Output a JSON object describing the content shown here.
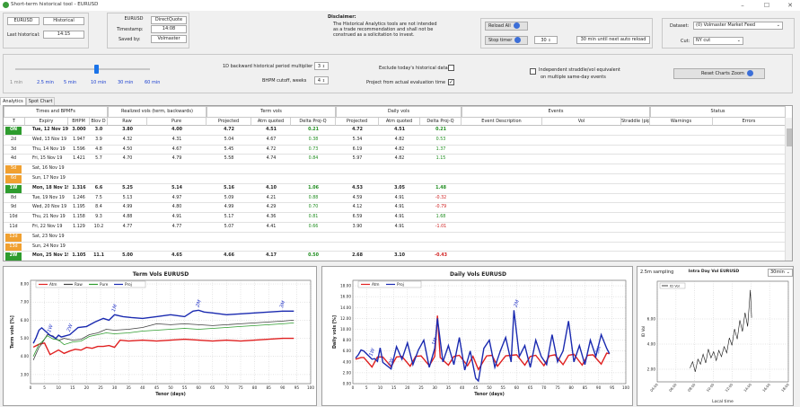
{
  "window": {
    "title": "Short-term historical tool - EURUSD"
  },
  "top": {
    "ccy_pair": "EURUSD",
    "mode": "Historical",
    "last_historical_label": "Last historical:",
    "last_historical_value": "14:15",
    "quote_ccy": "EURUSD",
    "quote_type": "DirectQuote",
    "timestamp_label": "Timestamp:",
    "timestamp_value": "14:08",
    "saved_by_label": "Saved by:",
    "saved_by_value": "Volmaster",
    "disclaimer_title": "Disclaimer:",
    "disclaimer_text_1": "The Historical Analytics tools are not intended",
    "disclaimer_text_2": "as a trade recommendation and shall not be",
    "disclaimer_text_3": "construed as a solicitation to invest.",
    "reload_all": "Reload All",
    "stop_timer": "Stop timer",
    "timer_value": "30",
    "timer_status": "30 min until next auto reload",
    "dataset_label": "Dataset:",
    "dataset_value": "(0) Volmaster Market Feed",
    "cut_label": "Cut:",
    "cut_value": "NY cut"
  },
  "controls": {
    "slider_ticks": [
      "1 min",
      "2.5 min",
      "5 min",
      "10 min",
      "30 min",
      "60 min"
    ],
    "slider_level_index": 3,
    "multiplier_label": "1D backward historical period multiplier",
    "multiplier_value": "3",
    "bhpm_cutoff_label": "BHPM cutoff, weeks",
    "bhpm_cutoff_value": "4",
    "exclude_today_label": "Exclude today's historical data",
    "exclude_today_checked": false,
    "project_from_label": "Project from actual evaluation time",
    "project_from_checked": true,
    "independent_label_1": "Independent straddle/vol equivalent",
    "independent_label_2": "on multiple same-day events",
    "independent_checked": false,
    "reset_zoom": "Reset Charts Zoom"
  },
  "tabs": [
    "Analytics",
    "Spot Chart"
  ],
  "grid": {
    "groups": [
      "Times and BPMFs",
      "Realized vols (term, backwards)",
      "Term vols",
      "Daily vols",
      "Events",
      "Status"
    ],
    "headers": [
      "T",
      "Expiry",
      "BHPM",
      "Blov D",
      "Raw",
      "Pure",
      "Projected",
      "Atm quoted",
      "Delta Proj-Q",
      "Projected",
      "Atm quoted",
      "Delta Proj-Q",
      "Event Description",
      "Vol",
      "Straddle (pips)",
      "Warnings",
      "Errors"
    ],
    "rows": [
      {
        "t": "ON",
        "tc": "green",
        "bold": true,
        "expiry": "Tue, 12 Nov 19",
        "bhpm": "3.000",
        "blov": "3.0",
        "raw": "3.80",
        "pure": "4.00",
        "tproj": "4.72",
        "tatm": "4.51",
        "tdelta": "0.21",
        "tdc": "green",
        "dproj": "4.72",
        "datm": "4.51",
        "ddelta": "0.21",
        "ddc": "green"
      },
      {
        "t": "2d",
        "tc": "plain",
        "bold": false,
        "expiry": "Wed, 13 Nov 19",
        "bhpm": "1.947",
        "blov": "3.9",
        "raw": "4.32",
        "pure": "4.31",
        "tproj": "5.04",
        "tatm": "4.67",
        "tdelta": "0.38",
        "tdc": "green",
        "dproj": "5.34",
        "datm": "4.82",
        "ddelta": "0.53",
        "ddc": "green"
      },
      {
        "t": "3d",
        "tc": "plain",
        "bold": false,
        "expiry": "Thu, 14 Nov 19",
        "bhpm": "1.596",
        "blov": "4.8",
        "raw": "4.50",
        "pure": "4.67",
        "tproj": "5.45",
        "tatm": "4.72",
        "tdelta": "0.73",
        "tdc": "green",
        "dproj": "6.19",
        "datm": "4.82",
        "ddelta": "1.37",
        "ddc": "green"
      },
      {
        "t": "4d",
        "tc": "plain",
        "bold": false,
        "expiry": "Fri, 15 Nov 19",
        "bhpm": "1.421",
        "blov": "5.7",
        "raw": "4.70",
        "pure": "4.79",
        "tproj": "5.58",
        "tatm": "4.74",
        "tdelta": "0.84",
        "tdc": "green",
        "dproj": "5.97",
        "datm": "4.82",
        "ddelta": "1.15",
        "ddc": "green"
      },
      {
        "t": "5d",
        "tc": "orange",
        "bold": false,
        "expiry": "Sat, 16 Nov 19",
        "bhpm": "",
        "blov": "",
        "raw": "",
        "pure": "",
        "tproj": "",
        "tatm": "",
        "tdelta": "",
        "tdc": "plain",
        "dproj": "",
        "datm": "",
        "ddelta": "",
        "ddc": "plain"
      },
      {
        "t": "6d",
        "tc": "orange",
        "bold": false,
        "expiry": "Sun, 17 Nov 19",
        "bhpm": "",
        "blov": "",
        "raw": "",
        "pure": "",
        "tproj": "",
        "tatm": "",
        "tdelta": "",
        "tdc": "plain",
        "dproj": "",
        "datm": "",
        "ddelta": "",
        "ddc": "plain"
      },
      {
        "t": "1W",
        "tc": "green",
        "bold": true,
        "expiry": "Mon, 18 Nov 19",
        "bhpm": "1.316",
        "blov": "6.6",
        "raw": "5.25",
        "pure": "5.14",
        "tproj": "5.16",
        "tatm": "4.10",
        "tdelta": "1.06",
        "tdc": "green",
        "dproj": "4.53",
        "datm": "3.05",
        "ddelta": "1.48",
        "ddc": "green"
      },
      {
        "t": "8d",
        "tc": "plain",
        "bold": false,
        "expiry": "Tue, 19 Nov 19",
        "bhpm": "1.246",
        "blov": "7.5",
        "raw": "5.13",
        "pure": "4.97",
        "tproj": "5.09",
        "tatm": "4.21",
        "tdelta": "0.88",
        "tdc": "green",
        "dproj": "4.59",
        "datm": "4.91",
        "ddelta": "-0.32",
        "ddc": "red"
      },
      {
        "t": "9d",
        "tc": "plain",
        "bold": false,
        "expiry": "Wed, 20 Nov 19",
        "bhpm": "1.195",
        "blov": "8.4",
        "raw": "4.99",
        "pure": "4.80",
        "tproj": "4.99",
        "tatm": "4.29",
        "tdelta": "0.70",
        "tdc": "green",
        "dproj": "4.12",
        "datm": "4.91",
        "ddelta": "-0.79",
        "ddc": "red"
      },
      {
        "t": "10d",
        "tc": "plain",
        "bold": false,
        "expiry": "Thu, 21 Nov 19",
        "bhpm": "1.158",
        "blov": "9.3",
        "raw": "4.88",
        "pure": "4.91",
        "tproj": "5.17",
        "tatm": "4.36",
        "tdelta": "0.81",
        "tdc": "green",
        "dproj": "6.59",
        "datm": "4.91",
        "ddelta": "1.68",
        "ddc": "green"
      },
      {
        "t": "11d",
        "tc": "plain",
        "bold": false,
        "expiry": "Fri, 22 Nov 19",
        "bhpm": "1.129",
        "blov": "10.2",
        "raw": "4.77",
        "pure": "4.77",
        "tproj": "5.07",
        "tatm": "4.41",
        "tdelta": "0.66",
        "tdc": "green",
        "dproj": "3.90",
        "datm": "4.91",
        "ddelta": "-1.01",
        "ddc": "red"
      },
      {
        "t": "12d",
        "tc": "orange",
        "bold": false,
        "expiry": "Sat, 23 Nov 19",
        "bhpm": "",
        "blov": "",
        "raw": "",
        "pure": "",
        "tproj": "",
        "tatm": "",
        "tdelta": "",
        "tdc": "plain",
        "dproj": "",
        "datm": "",
        "ddelta": "",
        "ddc": "plain"
      },
      {
        "t": "13d",
        "tc": "orange",
        "bold": false,
        "expiry": "Sun, 24 Nov 19",
        "bhpm": "",
        "blov": "",
        "raw": "",
        "pure": "",
        "tproj": "",
        "tatm": "",
        "tdelta": "",
        "tdc": "plain",
        "dproj": "",
        "datm": "",
        "ddelta": "",
        "ddc": "plain"
      },
      {
        "t": "2W",
        "tc": "green",
        "bold": true,
        "expiry": "Mon, 25 Nov 19",
        "bhpm": "1.105",
        "blov": "11.1",
        "raw": "5.00",
        "pure": "4.65",
        "tproj": "4.66",
        "tatm": "4.17",
        "tdelta": "0.50",
        "tdc": "green",
        "dproj": "2.68",
        "datm": "3.10",
        "ddelta": "-0.43",
        "ddc": "red"
      }
    ]
  },
  "colors": {
    "green_tenor": "#2e9c2e",
    "orange_tenor": "#f0a030",
    "atm": "#e02020",
    "raw": "#404040",
    "pure": "#2e9c2e",
    "proj": "#1a2ab0",
    "delta_pos": "#1e8c1e",
    "delta_neg": "#d02020"
  },
  "chart_data": [
    {
      "type": "line",
      "title": "Term Vols  EURUSD",
      "xlabel": "Tenor (days)",
      "ylabel": "Term vols [%]",
      "xlim": [
        0,
        100
      ],
      "ylim": [
        2.5,
        8.2
      ],
      "xticks": [
        "0",
        "5",
        "10",
        "15",
        "20",
        "25",
        "30",
        "35",
        "40",
        "45",
        "50",
        "55",
        "60",
        "65",
        "70",
        "75",
        "80",
        "85",
        "90",
        "95",
        "100"
      ],
      "yticks": [
        "3.00",
        "4.00",
        "5.00",
        "6.00",
        "7.00",
        "8.00"
      ],
      "legend": "top-left",
      "annotations": [
        "1W",
        "2W",
        "1M",
        "2M",
        "3M"
      ],
      "series": [
        {
          "name": "Atm",
          "color": "#e02020",
          "x": [
            1,
            3,
            5,
            7,
            10,
            12,
            14,
            16,
            18,
            20,
            22,
            24,
            26,
            28,
            30,
            32,
            35,
            40,
            45,
            50,
            55,
            60,
            65,
            70,
            75,
            80,
            85,
            90,
            94
          ],
          "y": [
            4.51,
            4.67,
            4.74,
            4.1,
            4.36,
            4.17,
            4.3,
            4.4,
            4.35,
            4.5,
            4.45,
            4.55,
            4.55,
            4.6,
            4.5,
            4.9,
            4.85,
            4.9,
            4.85,
            4.9,
            4.95,
            4.9,
            4.85,
            4.9,
            4.85,
            4.9,
            4.95,
            5.0,
            5.0
          ]
        },
        {
          "name": "Raw",
          "color": "#404040",
          "x": [
            1,
            3,
            4,
            6,
            8,
            10,
            12,
            15,
            18,
            21,
            24,
            27,
            30,
            35,
            40,
            45,
            50,
            55,
            60,
            65,
            70,
            75,
            80,
            85,
            90,
            94
          ],
          "y": [
            3.8,
            4.5,
            4.7,
            5.2,
            5.13,
            4.88,
            5.0,
            4.9,
            4.95,
            5.2,
            5.3,
            5.5,
            5.45,
            5.5,
            5.6,
            5.8,
            5.75,
            5.8,
            5.75,
            5.7,
            5.75,
            5.8,
            5.85,
            5.9,
            5.95,
            6.0
          ]
        },
        {
          "name": "Pure",
          "color": "#2e9c2e",
          "x": [
            1,
            3,
            4,
            6,
            8,
            10,
            12,
            15,
            18,
            21,
            24,
            27,
            30,
            35,
            40,
            45,
            50,
            55,
            60,
            65,
            70,
            75,
            80,
            85,
            90,
            94
          ],
          "y": [
            4.0,
            4.67,
            4.79,
            5.14,
            4.97,
            4.91,
            4.65,
            4.8,
            4.85,
            5.1,
            5.2,
            5.3,
            5.25,
            5.3,
            5.4,
            5.45,
            5.5,
            5.55,
            5.5,
            5.55,
            5.6,
            5.65,
            5.7,
            5.75,
            5.8,
            5.85
          ]
        },
        {
          "name": "Proj",
          "color": "#1a2ab0",
          "x": [
            1,
            2,
            3,
            4,
            7,
            8,
            9,
            10,
            11,
            14,
            17,
            20,
            23,
            26,
            28,
            30,
            33,
            36,
            40,
            45,
            50,
            55,
            58,
            60,
            62,
            65,
            70,
            75,
            80,
            85,
            90,
            94
          ],
          "y": [
            4.72,
            5.04,
            5.45,
            5.58,
            5.16,
            5.09,
            4.99,
            5.17,
            5.07,
            5.2,
            5.6,
            5.65,
            5.9,
            6.1,
            6.0,
            6.3,
            6.2,
            6.15,
            6.1,
            6.2,
            6.3,
            6.2,
            6.5,
            6.55,
            6.45,
            6.4,
            6.3,
            6.35,
            6.4,
            6.45,
            6.5,
            6.5
          ]
        }
      ]
    },
    {
      "type": "line",
      "title": "Daily Vols  EURUSD",
      "xlabel": "Tenor (days)",
      "ylabel": "Daily vols [%]",
      "xlim": [
        0,
        100
      ],
      "ylim": [
        0,
        19
      ],
      "xticks": [
        "0",
        "5",
        "10",
        "15",
        "20",
        "25",
        "30",
        "35",
        "40",
        "45",
        "50",
        "55",
        "60",
        "65",
        "70",
        "75",
        "80",
        "85",
        "90",
        "95",
        "100"
      ],
      "yticks": [
        "0.00",
        "2.00",
        "4.00",
        "6.00",
        "8.00",
        "10.00",
        "12.00",
        "14.00",
        "16.00",
        "18.00"
      ],
      "legend": "top-left",
      "annotations": [
        "1W",
        "2W",
        "1M",
        "2M",
        "3M"
      ],
      "series": [
        {
          "name": "Atm",
          "color": "#e02020",
          "x": [
            1,
            3,
            4,
            7,
            9,
            11,
            14,
            16,
            18,
            21,
            23,
            25,
            28,
            30,
            31,
            32,
            35,
            37,
            39,
            42,
            44,
            46,
            49,
            51,
            53,
            56,
            58,
            60,
            63,
            65,
            67,
            70,
            72,
            74,
            77,
            79,
            81,
            84,
            86,
            88,
            91,
            93,
            94
          ],
          "y": [
            4.5,
            4.8,
            4.8,
            3.05,
            4.9,
            4.9,
            3.1,
            4.9,
            5.0,
            3.2,
            5.0,
            5.1,
            3.3,
            5.0,
            12.5,
            4.8,
            3.4,
            5.0,
            5.2,
            3.3,
            5.0,
            2.6,
            5.1,
            5.2,
            3.2,
            5.1,
            5.2,
            5.3,
            3.4,
            5.0,
            5.2,
            3.3,
            5.1,
            5.3,
            3.5,
            5.2,
            5.4,
            3.4,
            5.2,
            5.3,
            3.6,
            5.6,
            5.5
          ]
        },
        {
          "name": "Proj",
          "color": "#1a2ab0",
          "x": [
            1,
            2,
            3,
            4,
            7,
            8,
            9,
            10,
            11,
            14,
            16,
            18,
            20,
            22,
            24,
            26,
            28,
            30,
            31,
            33,
            35,
            37,
            39,
            41,
            43,
            45,
            46,
            48,
            50,
            52,
            54,
            56,
            58,
            59,
            61,
            63,
            65,
            67,
            69,
            71,
            73,
            75,
            77,
            79,
            81,
            83,
            85,
            87,
            89,
            91,
            93,
            94
          ],
          "y": [
            4.7,
            5.3,
            6.2,
            6.0,
            4.5,
            4.6,
            4.1,
            6.6,
            3.9,
            2.7,
            6.8,
            4.5,
            7.5,
            3.5,
            6.2,
            8.0,
            3.0,
            6.5,
            12.0,
            4.0,
            7.0,
            3.5,
            8.5,
            2.5,
            6.0,
            1.0,
            0.5,
            6.5,
            8.0,
            3.0,
            6.0,
            8.5,
            4.0,
            13.5,
            5.0,
            7.0,
            3.0,
            8.0,
            5.0,
            3.5,
            9.0,
            4.0,
            6.0,
            11.5,
            4.0,
            7.0,
            3.5,
            8.0,
            5.0,
            9.0,
            6.5,
            5.5
          ]
        }
      ]
    },
    {
      "type": "line",
      "title": "Intra Day Vol  EURUSD",
      "xlabel": "Local time",
      "ylabel": "ID Vol",
      "ylim": [
        1,
        9
      ],
      "yticks": [
        "2.00",
        "4.00",
        "6.00"
      ],
      "xticks": [
        "04:00",
        "06:00",
        "08:00",
        "10:00",
        "12:00",
        "14:00",
        "16:00",
        "18:00"
      ],
      "legend": "top-left",
      "sampling_label": "2.5m sampling",
      "interval_value": "30min",
      "series": [
        {
          "name": "ID Vol",
          "color": "#111111",
          "x": [
            0.25,
            0.27,
            0.29,
            0.31,
            0.33,
            0.35,
            0.37,
            0.39,
            0.41,
            0.43,
            0.45,
            0.47,
            0.49,
            0.51,
            0.53,
            0.55,
            0.57,
            0.59,
            0.61,
            0.63,
            0.65,
            0.67,
            0.69,
            0.71,
            0.72
          ],
          "y": [
            2.1,
            2.6,
            1.8,
            2.8,
            2.4,
            3.2,
            2.5,
            3.6,
            2.9,
            3.4,
            2.7,
            3.5,
            3.0,
            3.8,
            3.3,
            4.5,
            3.9,
            5.2,
            4.4,
            5.9,
            5.0,
            6.5,
            5.4,
            8.3,
            6.1
          ]
        }
      ]
    }
  ]
}
